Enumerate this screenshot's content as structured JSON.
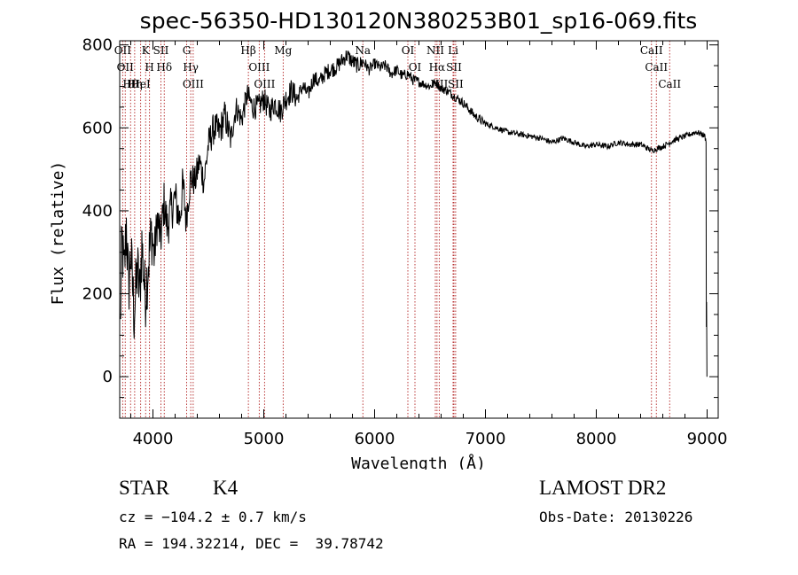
{
  "chart_data": {
    "type": "line",
    "title": "spec-56350-HD130120N380253B01_sp16-069.fits",
    "xlabel": "Wavelength (Å)",
    "ylabel": "Flux (relative)",
    "xlim": [
      3700,
      9100
    ],
    "ylim": [
      -100,
      810
    ],
    "xticks": [
      "4000",
      "5000",
      "6000",
      "7000",
      "8000",
      "9000"
    ],
    "yticks": [
      "0",
      "200",
      "400",
      "600",
      "800"
    ],
    "grid": false,
    "series": [
      {
        "points": [
          [
            3705,
            120
          ],
          [
            3720,
            330
          ],
          [
            3740,
            240
          ],
          [
            3760,
            370
          ],
          [
            3780,
            210
          ],
          [
            3800,
            300
          ],
          [
            3830,
            150
          ],
          [
            3860,
            260
          ],
          [
            3880,
            200
          ],
          [
            3900,
            320
          ],
          [
            3930,
            190
          ],
          [
            3960,
            280
          ],
          [
            3990,
            350
          ],
          [
            4010,
            290
          ],
          [
            4040,
            380
          ],
          [
            4070,
            330
          ],
          [
            4100,
            420
          ],
          [
            4130,
            360
          ],
          [
            4160,
            400
          ],
          [
            4200,
            430
          ],
          [
            4240,
            380
          ],
          [
            4270,
            460
          ],
          [
            4300,
            380
          ],
          [
            4340,
            480
          ],
          [
            4380,
            470
          ],
          [
            4420,
            520
          ],
          [
            4460,
            470
          ],
          [
            4500,
            560
          ],
          [
            4550,
            600
          ],
          [
            4600,
            590
          ],
          [
            4650,
            630
          ],
          [
            4700,
            570
          ],
          [
            4750,
            650
          ],
          [
            4800,
            620
          ],
          [
            4850,
            680
          ],
          [
            4900,
            650
          ],
          [
            4950,
            650
          ],
          [
            5000,
            670
          ],
          [
            5050,
            640
          ],
          [
            5100,
            660
          ],
          [
            5150,
            640
          ],
          [
            5200,
            670
          ],
          [
            5250,
            690
          ],
          [
            5300,
            670
          ],
          [
            5350,
            700
          ],
          [
            5400,
            680
          ],
          [
            5450,
            720
          ],
          [
            5500,
            710
          ],
          [
            5550,
            730
          ],
          [
            5600,
            740
          ],
          [
            5650,
            745
          ],
          [
            5700,
            760
          ],
          [
            5750,
            775
          ],
          [
            5800,
            760
          ],
          [
            5850,
            750
          ],
          [
            5900,
            760
          ],
          [
            5950,
            740
          ],
          [
            6000,
            755
          ],
          [
            6050,
            745
          ],
          [
            6100,
            750
          ],
          [
            6150,
            730
          ],
          [
            6200,
            740
          ],
          [
            6250,
            725
          ],
          [
            6300,
            730
          ],
          [
            6350,
            715
          ],
          [
            6400,
            710
          ],
          [
            6450,
            705
          ],
          [
            6500,
            700
          ],
          [
            6550,
            710
          ],
          [
            6600,
            695
          ],
          [
            6650,
            690
          ],
          [
            6700,
            680
          ],
          [
            6750,
            670
          ],
          [
            6800,
            660
          ],
          [
            6850,
            645
          ],
          [
            6900,
            630
          ],
          [
            6950,
            620
          ],
          [
            7000,
            610
          ],
          [
            7100,
            600
          ],
          [
            7200,
            590
          ],
          [
            7300,
            585
          ],
          [
            7400,
            580
          ],
          [
            7500,
            575
          ],
          [
            7600,
            565
          ],
          [
            7700,
            575
          ],
          [
            7800,
            565
          ],
          [
            7900,
            555
          ],
          [
            8000,
            560
          ],
          [
            8100,
            555
          ],
          [
            8200,
            565
          ],
          [
            8300,
            560
          ],
          [
            8400,
            560
          ],
          [
            8500,
            545
          ],
          [
            8600,
            555
          ],
          [
            8700,
            570
          ],
          [
            8800,
            580
          ],
          [
            8850,
            585
          ],
          [
            8900,
            590
          ],
          [
            8950,
            585
          ],
          [
            8980,
            580
          ],
          [
            8990,
            565
          ],
          [
            8993,
            120
          ],
          [
            8995,
            180
          ],
          [
            8998,
            0
          ]
        ]
      }
    ],
    "lines": [
      {
        "x": 3727,
        "labels": [
          "OII"
        ]
      },
      {
        "x": 3750,
        "labels": [
          "OII"
        ]
      },
      {
        "x": 3798,
        "labels": [
          "Hθ"
        ]
      },
      {
        "x": 3835,
        "labels": [
          "Hη"
        ]
      },
      {
        "x": 3889,
        "labels": [
          "HeI"
        ]
      },
      {
        "x": 3934,
        "labels": [
          "K"
        ]
      },
      {
        "x": 3969,
        "labels": [
          "H"
        ]
      },
      {
        "x": 4072,
        "labels": [
          "SII"
        ]
      },
      {
        "x": 4102,
        "labels": [
          "Hδ"
        ]
      },
      {
        "x": 4304,
        "labels": [
          "G"
        ]
      },
      {
        "x": 4341,
        "labels": [
          "Hγ"
        ]
      },
      {
        "x": 4363,
        "labels": [
          "OIII"
        ]
      },
      {
        "x": 4861,
        "labels": [
          "Hβ"
        ]
      },
      {
        "x": 4959,
        "labels": [
          "OIII"
        ]
      },
      {
        "x": 5007,
        "labels": [
          "OIII"
        ]
      },
      {
        "x": 5175,
        "labels": [
          "Mg"
        ]
      },
      {
        "x": 5894,
        "labels": [
          "Na"
        ]
      },
      {
        "x": 6300,
        "labels": [
          "OI"
        ]
      },
      {
        "x": 6364,
        "labels": [
          "OI"
        ]
      },
      {
        "x": 6548,
        "labels": [
          "NII"
        ]
      },
      {
        "x": 6563,
        "labels": [
          "Hα"
        ]
      },
      {
        "x": 6583,
        "labels": [
          "NII"
        ]
      },
      {
        "x": 6708,
        "labels": [
          "Li"
        ]
      },
      {
        "x": 6716,
        "labels": [
          "SII"
        ]
      },
      {
        "x": 6731,
        "labels": [
          "SII"
        ]
      },
      {
        "x": 8498,
        "labels": [
          "CaII"
        ]
      },
      {
        "x": 8542,
        "labels": [
          "CaII"
        ]
      },
      {
        "x": 8662,
        "labels": [
          "CaII"
        ]
      }
    ]
  },
  "info": {
    "star_class": "STAR",
    "subclass": "K4",
    "survey": "LAMOST DR2",
    "cz": "cz = −104.2 ± 0.7 km/s",
    "obs_date": "Obs-Date: 20130226",
    "radec": "RA = 194.32214, DEC =  39.78742"
  }
}
